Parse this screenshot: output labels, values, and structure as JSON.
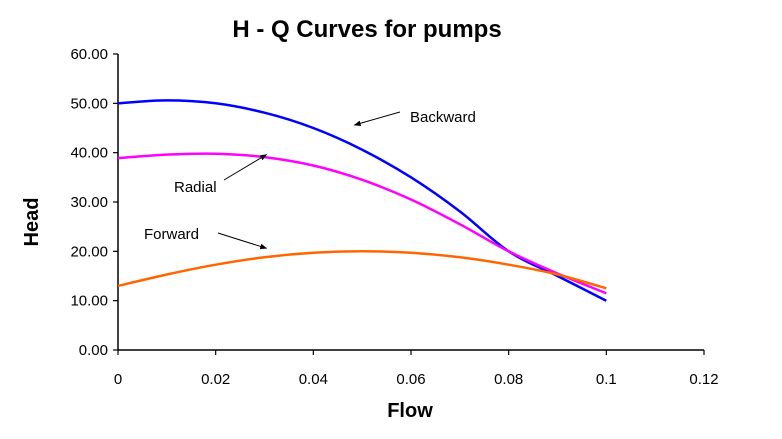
{
  "chart_data": {
    "type": "line",
    "title": "H - Q Curves for pumps",
    "xlabel": "Flow",
    "ylabel": "Head",
    "xlim": [
      0,
      0.12
    ],
    "ylim": [
      0,
      60
    ],
    "x_ticks": [
      "0",
      "0.02",
      "0.04",
      "0.06",
      "0.08",
      "0.1",
      "0.12"
    ],
    "y_ticks": [
      "0.00",
      "10.00",
      "20.00",
      "30.00",
      "40.00",
      "50.00",
      "60.00"
    ],
    "grid": false,
    "legend": "none",
    "series": [
      {
        "name": "Backward",
        "color": "#0000ff",
        "x": [
          0,
          0.01,
          0.02,
          0.03,
          0.04,
          0.05,
          0.06,
          0.07,
          0.08,
          0.09,
          0.1
        ],
        "y": [
          50.0,
          50.6,
          50.0,
          48.1,
          45.0,
          40.6,
          35.0,
          28.1,
          20.0,
          15.0,
          10.0
        ]
      },
      {
        "name": "Radial",
        "color": "#ff00ff",
        "x": [
          0,
          0.01,
          0.02,
          0.03,
          0.04,
          0.05,
          0.06,
          0.07,
          0.08,
          0.09,
          0.1
        ],
        "y": [
          38.9,
          39.6,
          39.8,
          39.1,
          37.4,
          34.5,
          30.5,
          25.5,
          20.0,
          15.5,
          11.5
        ]
      },
      {
        "name": "Forward",
        "color": "#ff6600",
        "x": [
          0,
          0.01,
          0.02,
          0.03,
          0.04,
          0.05,
          0.06,
          0.07,
          0.08,
          0.09,
          0.1
        ],
        "y": [
          13.0,
          15.3,
          17.3,
          18.8,
          19.7,
          20.0,
          19.7,
          18.8,
          17.3,
          15.3,
          12.5
        ]
      }
    ],
    "annotations": [
      {
        "text": "Backward",
        "target_x": 0.048,
        "target_y": 45.0
      },
      {
        "text": "Radial",
        "target_x": 0.03,
        "target_y": 39.0
      },
      {
        "text": "Forward",
        "target_x": 0.03,
        "target_y": 20.0
      }
    ]
  }
}
